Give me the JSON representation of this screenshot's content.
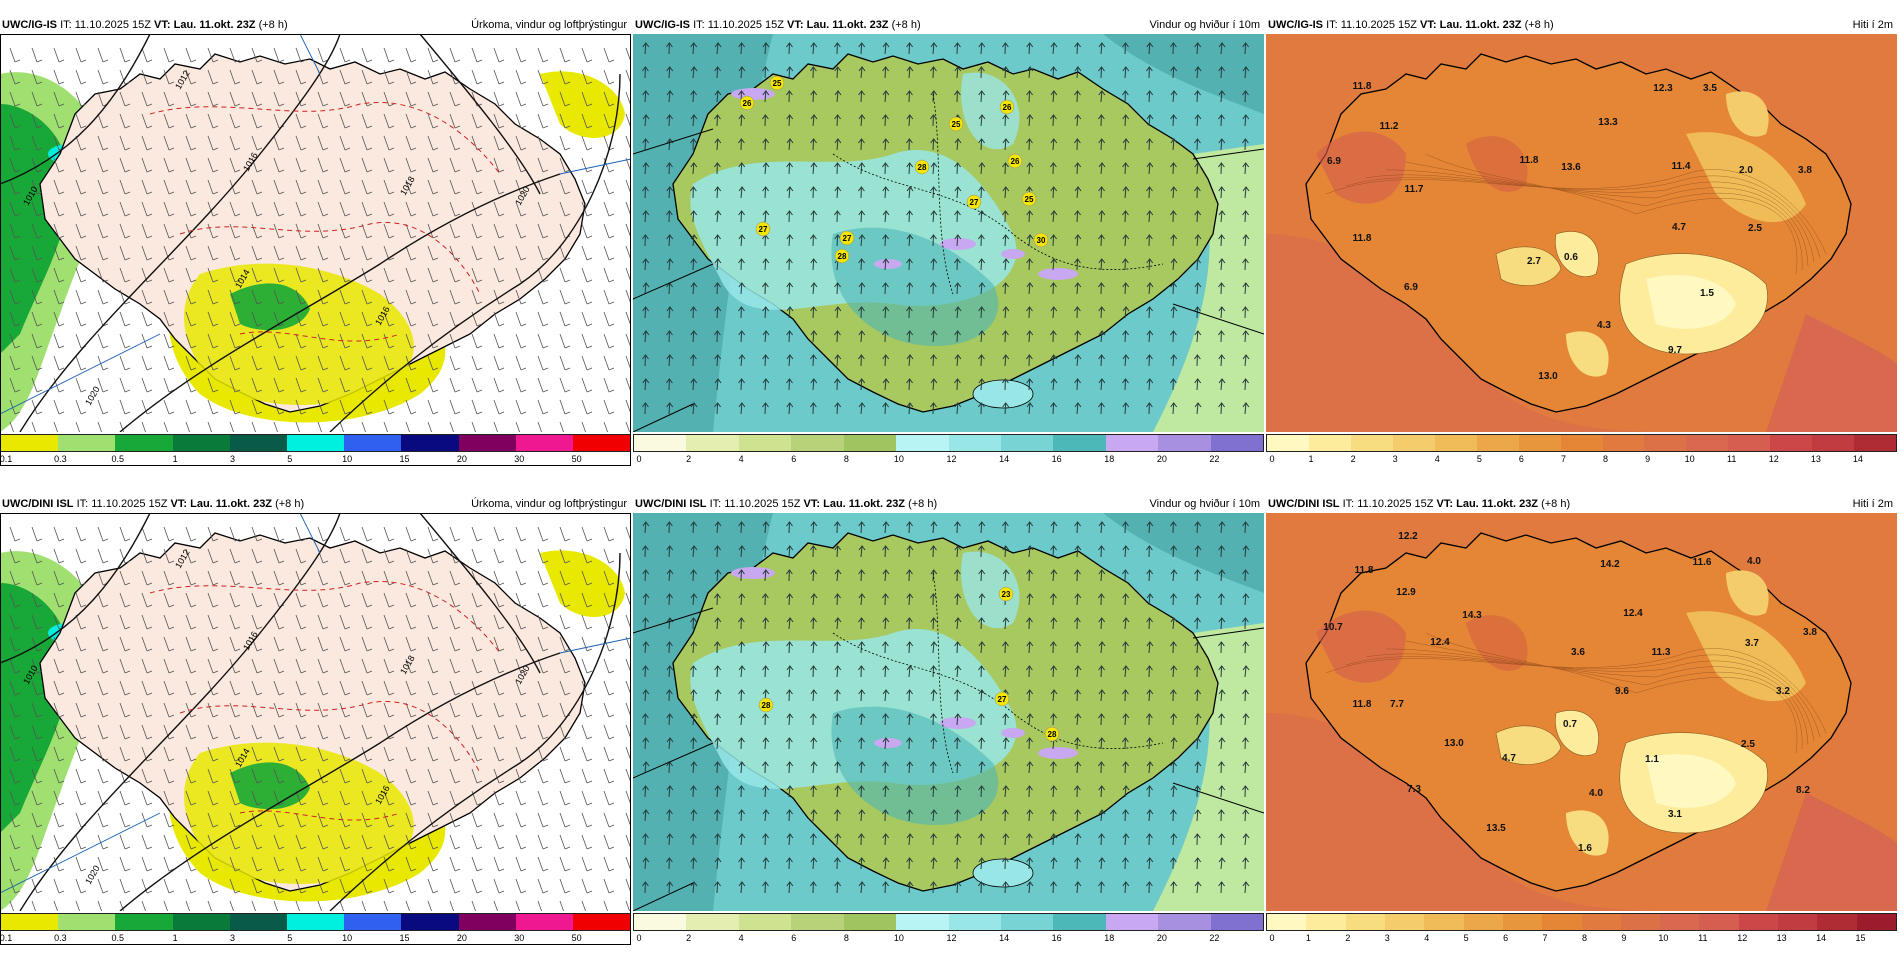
{
  "panels": [
    {
      "id": "p1",
      "model": "UWC/IG-IS",
      "it": "IT: 11.10.2025 15Z",
      "vt_label": "VT:",
      "vt": "Lau. 11.okt. 23Z",
      "lead": "(+8 h)",
      "title": "Úrkoma, vindur og loftþrýstingur",
      "type": "prec",
      "isobars": [
        "1012",
        "1016",
        "1018",
        "1020",
        "1010",
        "1014",
        "1016",
        "1020"
      ],
      "scale": [
        "0.1",
        "0.3",
        "0.5",
        "1",
        "3",
        "5",
        "10",
        "15",
        "20",
        "30",
        "50"
      ]
    },
    {
      "id": "p2",
      "model": "UWC/IG-IS",
      "it": "IT: 11.10.2025 15Z",
      "vt_label": "VT:",
      "vt": "Lau. 11.okt. 23Z",
      "lead": "(+8 h)",
      "title": "Vindur og hviður í 10m",
      "type": "wind",
      "gusts": [
        "25",
        "26",
        "25",
        "26",
        "26",
        "28",
        "25",
        "27",
        "27",
        "27",
        "28",
        "30"
      ],
      "scale": [
        "0",
        "2",
        "4",
        "6",
        "8",
        "10",
        "12",
        "14",
        "16",
        "18",
        "20",
        "22"
      ]
    },
    {
      "id": "p3",
      "model": "UWC/IG-IS",
      "it": "IT: 11.10.2025 15Z",
      "vt_label": "VT:",
      "vt": "Lau. 11.okt. 23Z",
      "lead": "(+8 h)",
      "title": "Hiti í 2m",
      "type": "temp",
      "temps": [
        "11.8",
        "12.3",
        "3.5",
        "11.2",
        "13.3",
        "6.9",
        "11.8",
        "13.6",
        "11.4",
        "2.0",
        "3.8",
        "11.7",
        "4.7",
        "2.5",
        "11.8",
        "2.7",
        "0.6",
        "6.9",
        "1.5",
        "4.3",
        "9.7",
        "13.0"
      ],
      "scale": [
        "0",
        "1",
        "2",
        "3",
        "4",
        "5",
        "6",
        "7",
        "8",
        "9",
        "10",
        "11",
        "12",
        "13",
        "14"
      ]
    },
    {
      "id": "p4",
      "model": "UWC/DINI ISL",
      "it": "IT: 11.10.2025 15Z",
      "vt_label": "VT:",
      "vt": "Lau. 11.okt. 23Z",
      "lead": "(+8 h)",
      "title": "Úrkoma, vindur og loftþrýstingur",
      "type": "prec",
      "isobars": [
        "1012",
        "1016",
        "1018",
        "1020",
        "1010",
        "1014",
        "1016",
        "1020"
      ],
      "scale": [
        "0.1",
        "0.3",
        "0.5",
        "1",
        "3",
        "5",
        "10",
        "15",
        "20",
        "30",
        "50"
      ]
    },
    {
      "id": "p5",
      "model": "UWC/DINI ISL",
      "it": "IT: 11.10.2025 15Z",
      "vt_label": "VT:",
      "vt": "Lau. 11.okt. 23Z",
      "lead": "(+8 h)",
      "title": "Vindur og hviður í 10m",
      "type": "wind",
      "gusts": [
        "23",
        "28",
        "27",
        "28"
      ],
      "scale": [
        "0",
        "2",
        "4",
        "6",
        "8",
        "10",
        "12",
        "14",
        "16",
        "18",
        "20",
        "22"
      ]
    },
    {
      "id": "p6",
      "model": "UWC/DINI ISL",
      "it": "IT: 11.10.2025 15Z",
      "vt_label": "VT:",
      "vt": "Lau. 11.okt. 23Z",
      "lead": "(+8 h)",
      "title": "Hiti í 2m",
      "type": "temp",
      "temps": [
        "12.2",
        "11.8",
        "14.2",
        "11.6",
        "4.0",
        "12.9",
        "10.7",
        "14.3",
        "12.4",
        "12.4",
        "3.8",
        "3.7",
        "3.6",
        "11.3",
        "11.8",
        "7.7",
        "9.6",
        "3.2",
        "13.0",
        "0.7",
        "4.7",
        "2.5",
        "1.1",
        "7.3",
        "4.0",
        "8.2",
        "13.5",
        "3.1",
        "1.6"
      ],
      "scale": [
        "0",
        "1",
        "2",
        "3",
        "4",
        "5",
        "6",
        "7",
        "8",
        "9",
        "10",
        "11",
        "12",
        "13",
        "14",
        "15"
      ]
    }
  ],
  "colors": {
    "prec": [
      "#cccc00",
      "#e8e800",
      "#a0e070",
      "#18a838",
      "#0a7a3a",
      "#0a5a48",
      "#00f0e0",
      "#3060f0",
      "#0a0a80",
      "#800060",
      "#f01890",
      "#f00000"
    ],
    "wind": [
      "#fafae0",
      "#e4eeb0",
      "#cfe290",
      "#b8d27a",
      "#a0c460",
      "#b8f4f4",
      "#98e6e6",
      "#78d4d4",
      "#4cb8b8",
      "#c8a8f0",
      "#a890e0",
      "#8070d0",
      "#5040b0"
    ],
    "temp": [
      "#fff8c0",
      "#fcec9c",
      "#f8dc80",
      "#f4cc6c",
      "#f0bc58",
      "#eca848",
      "#e8963c",
      "#e48636",
      "#e07a3e",
      "#dc7046",
      "#d8684e",
      "#d65e50",
      "#cc4848",
      "#c03c40",
      "#b02c34",
      "#9c1c2c"
    ],
    "land_prec": "#fbe9df",
    "ocean_wind": "#6ccaca",
    "land_wind": "#a8c860"
  }
}
